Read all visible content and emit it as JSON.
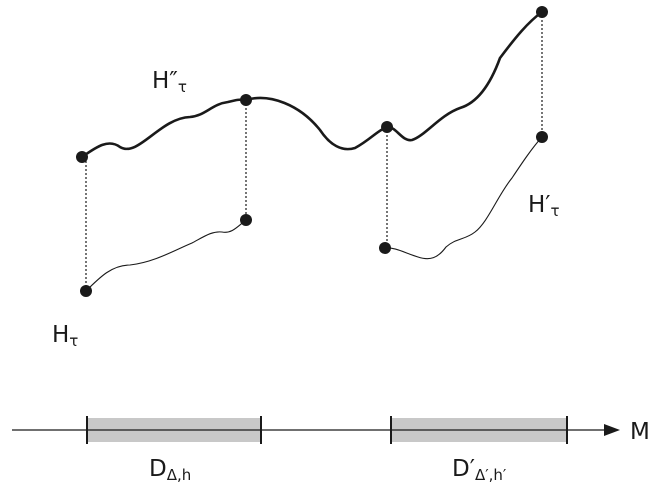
{
  "labels": {
    "h_double_prime_main": "H″",
    "h_double_prime_sub": "τ",
    "h_prime_main": "H′",
    "h_prime_sub": "τ",
    "h_main": "H",
    "h_sub": "τ",
    "axis": "M",
    "interval1_main": "D",
    "interval1_sub": "Δ,h",
    "interval2_main": "D′",
    "interval2_sub": "Δ′,h′"
  },
  "colors": {
    "curve": "#1a1a1a",
    "interval_fill": "#c8c8c8"
  }
}
